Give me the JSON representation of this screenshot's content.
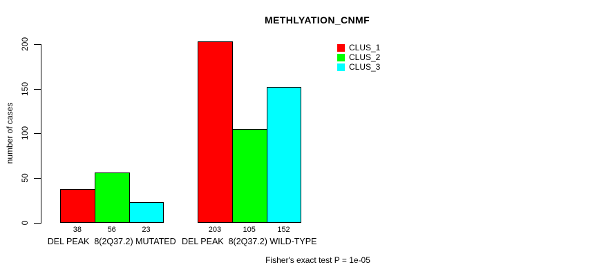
{
  "chart_data": {
    "type": "bar",
    "title": "METHLYATION_CNMF",
    "ylabel": "number of cases",
    "xlabel": "",
    "ylim": [
      0,
      200
    ],
    "yticks": [
      0,
      50,
      100,
      150,
      200
    ],
    "grid": false,
    "background": "#FFFFFF",
    "axis_color": "#000000",
    "categories": [
      "DEL PEAK  8(2Q37.2) MUTATED",
      "DEL PEAK  8(2Q37.2) WILD-TYPE"
    ],
    "series": [
      {
        "name": "CLUS_1",
        "color": "#FF0000",
        "values": [
          38,
          203
        ]
      },
      {
        "name": "CLUS_2",
        "color": "#00FF00",
        "values": [
          56,
          105
        ]
      },
      {
        "name": "CLUS_3",
        "color": "#00FFFF",
        "values": [
          23,
          152
        ]
      }
    ],
    "bar_value_labels": [
      [
        "38",
        "56",
        "23"
      ],
      [
        "203",
        "105",
        "152"
      ]
    ],
    "legend": {
      "position": "top-right",
      "entries": [
        "CLUS_1",
        "CLUS_2",
        "CLUS_3"
      ]
    },
    "footnote": "Fisher's exact test P = 1e-05"
  }
}
